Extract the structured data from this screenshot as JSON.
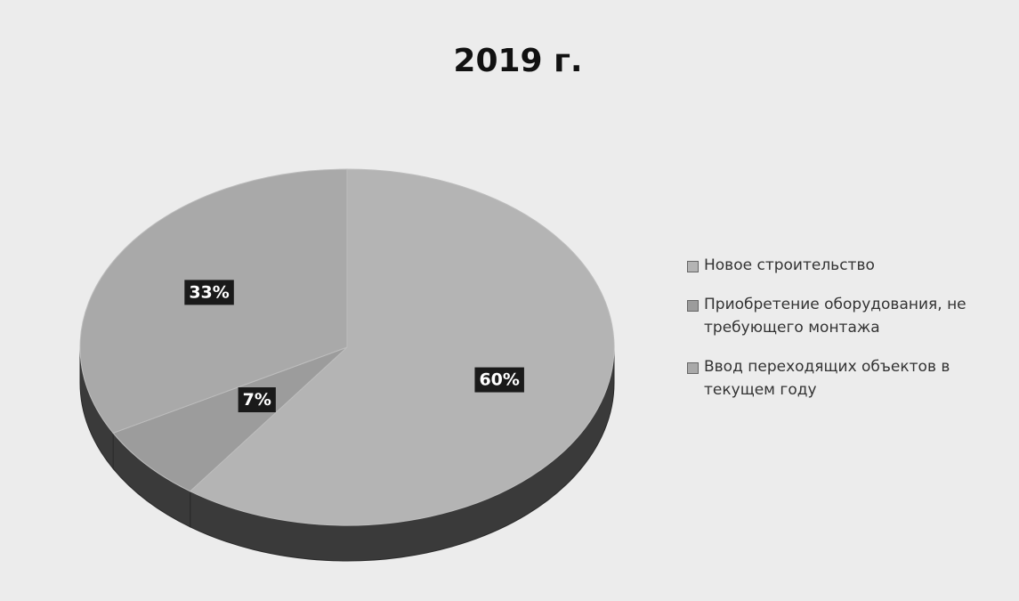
{
  "chart_data": {
    "type": "pie",
    "title": "2019 г.",
    "categories": [
      "Новое строительство",
      "Приобретение оборудования, не требующего монтажа",
      "Ввод переходящих объектов в текущем году"
    ],
    "values": [
      60,
      7,
      33
    ],
    "value_labels": [
      "60%",
      "7%",
      "33%"
    ],
    "colors": [
      "#b4b4b4",
      "#9c9c9c",
      "#a9a9a9"
    ],
    "legend": "right"
  }
}
